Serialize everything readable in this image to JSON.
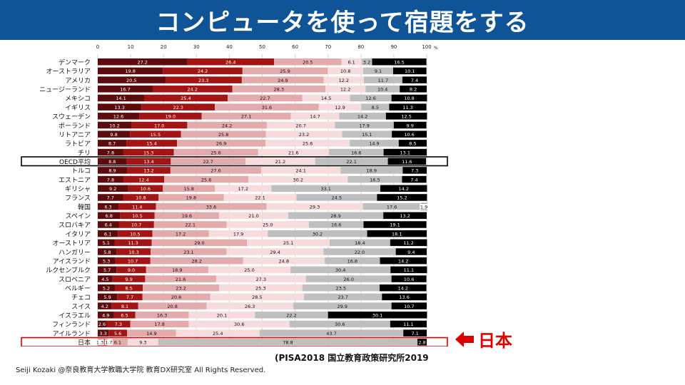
{
  "header": {
    "title": "コンピュータを使って宿題をする"
  },
  "source": "(PISA2018 国立教育政策研究所2019",
  "footer": "Seiji Kozaki @奈良教育大学教職大学院 教育DX研究室 All Rights Reserved.",
  "callout": {
    "label": "日本",
    "color": "#e00000"
  },
  "chart_data": {
    "type": "bar",
    "orientation": "horizontal-stacked-100",
    "xlim": [
      0,
      100
    ],
    "xticks": [
      0,
      10,
      20,
      30,
      40,
      50,
      60,
      70,
      80,
      90,
      100
    ],
    "xunit": "%",
    "colors": [
      "#5c0c0c",
      "#a31414",
      "#e3abab",
      "#f6dcdc",
      "#bfbfbf",
      "#000000"
    ],
    "highlight": [
      "OECD平均",
      "日本"
    ],
    "categories": [
      "デンマーク",
      "オーストラリア",
      "アメリカ",
      "ニュージーランド",
      "メキシコ",
      "イギリス",
      "スウェーデン",
      "ポーランド",
      "リトアニア",
      "ラトビア",
      "チリ",
      "OECD平均",
      "トルコ",
      "エストニア",
      "ギリシャ",
      "フランス",
      "韓国",
      "スペイン",
      "スロバキア",
      "イタリア",
      "オーストリア",
      "ハンガリー",
      "アイスランド",
      "ルクセンブルク",
      "スロベニア",
      "ベルギー",
      "チェコ",
      "スイス",
      "イスラエル",
      "フィンランド",
      "アイルランド",
      "日本"
    ],
    "rows": [
      [
        27.2,
        26.4,
        20.5,
        6.1,
        3.2,
        16.5
      ],
      [
        19.8,
        24.2,
        25.9,
        10.8,
        9.1,
        10.1
      ],
      [
        20.5,
        23.3,
        24.9,
        12.2,
        11.7,
        7.4
      ],
      [
        16.7,
        24.2,
        28.3,
        12.2,
        10.4,
        8.2
      ],
      [
        14.1,
        25.4,
        22.7,
        14.5,
        12.6,
        10.8
      ],
      [
        13.3,
        22.3,
        31.6,
        12.9,
        8.5,
        11.3
      ],
      [
        12.6,
        19.0,
        27.1,
        14.7,
        14.2,
        12.5
      ],
      [
        10.2,
        17.0,
        24.2,
        20.7,
        17.9,
        9.9
      ],
      [
        9.8,
        15.5,
        25.8,
        23.2,
        15.1,
        10.6
      ],
      [
        8.7,
        15.4,
        26.9,
        25.6,
        14.9,
        8.5
      ],
      [
        7.8,
        15.3,
        25.6,
        21.6,
        16.6,
        13.1
      ],
      [
        8.8,
        13.4,
        22.7,
        21.2,
        22.1,
        11.6
      ],
      [
        8.9,
        13.2,
        27.6,
        24.1,
        18.9,
        7.3
      ],
      [
        7.8,
        12.4,
        25.6,
        30.2,
        16.5,
        7.4
      ],
      [
        9.2,
        10.6,
        15.8,
        17.2,
        33.1,
        14.2
      ],
      [
        7.7,
        10.8,
        19.8,
        22.1,
        24.5,
        15.2
      ],
      [
        6.3,
        11.4,
        33.6,
        29.3,
        17.6,
        1.9
      ],
      [
        6.8,
        10.5,
        19.6,
        21.0,
        28.9,
        13.2
      ],
      [
        6.4,
        10.7,
        22.1,
        25.0,
        16.6,
        19.1
      ],
      [
        6.1,
        10.5,
        17.2,
        17.9,
        30.2,
        18.1
      ],
      [
        5.1,
        11.3,
        29.0,
        25.1,
        18.4,
        11.2
      ],
      [
        5.8,
        10.3,
        23.1,
        29.4,
        22.0,
        9.4
      ],
      [
        5.3,
        10.7,
        28.2,
        24.8,
        16.8,
        14.2
      ],
      [
        5.7,
        9.0,
        18.9,
        25.0,
        30.4,
        11.1
      ],
      [
        4.5,
        9.9,
        21.6,
        27.3,
        26.0,
        10.6
      ],
      [
        5.2,
        8.5,
        23.2,
        25.3,
        23.5,
        14.2
      ],
      [
        5.9,
        7.7,
        20.6,
        28.5,
        23.7,
        13.6
      ],
      [
        4.2,
        8.1,
        20.8,
        26.3,
        29.9,
        10.7
      ],
      [
        4.9,
        6.5,
        16.3,
        20.1,
        22.2,
        30.1
      ],
      [
        2.6,
        7.3,
        17.8,
        30.6,
        30.6,
        11.1
      ],
      [
        3.3,
        5.6,
        14.9,
        25.4,
        43.7,
        7.1
      ],
      [
        1.3,
        1.7,
        6.1,
        9.3,
        78.8,
        2.8
      ]
    ]
  }
}
